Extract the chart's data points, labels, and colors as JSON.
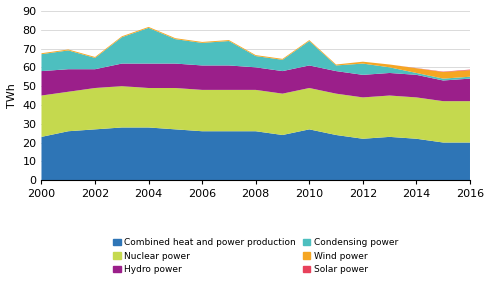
{
  "years": [
    2000,
    2001,
    2002,
    2003,
    2004,
    2005,
    2006,
    2007,
    2008,
    2009,
    2010,
    2011,
    2012,
    2013,
    2014,
    2015,
    2016
  ],
  "combined_heat": [
    23,
    26,
    27,
    28,
    28,
    27,
    26,
    26,
    26,
    24,
    27,
    24,
    22,
    23,
    22,
    20,
    20
  ],
  "nuclear": [
    22,
    21,
    22,
    22,
    21,
    22,
    22,
    22,
    22,
    22,
    22,
    22,
    22,
    22,
    22,
    22,
    22
  ],
  "hydro": [
    13,
    12,
    10,
    12,
    13,
    13,
    13,
    13,
    12,
    12,
    12,
    12,
    12,
    12,
    12,
    11,
    12
  ],
  "condensing": [
    9,
    10,
    6,
    14,
    19,
    13,
    12,
    13,
    6,
    6,
    13,
    3,
    6,
    3,
    1,
    1,
    1
  ],
  "wind": [
    0.5,
    0.5,
    0.5,
    0.5,
    0.5,
    0.5,
    0.5,
    0.5,
    0.5,
    0.5,
    0.5,
    0.5,
    1.0,
    1.5,
    2.5,
    3.5,
    3.5
  ],
  "solar": [
    0,
    0,
    0,
    0,
    0,
    0,
    0,
    0,
    0,
    0,
    0,
    0,
    0,
    0,
    0.1,
    0.2,
    0.3
  ],
  "colors": {
    "combined_heat": "#2E75B6",
    "nuclear": "#C5D94E",
    "hydro": "#9B1F8A",
    "condensing": "#4DBFBF",
    "wind": "#F5A623",
    "solar": "#E8415B"
  },
  "ylabel": "TWh",
  "ylim": [
    0,
    90
  ],
  "yticks": [
    0,
    10,
    20,
    30,
    40,
    50,
    60,
    70,
    80,
    90
  ],
  "xticks": [
    2000,
    2002,
    2004,
    2006,
    2008,
    2010,
    2012,
    2014,
    2016
  ],
  "legend": [
    {
      "label": "Combined heat and power production",
      "color": "#2E75B6"
    },
    {
      "label": "Nuclear power",
      "color": "#C5D94E"
    },
    {
      "label": "Hydro power",
      "color": "#9B1F8A"
    },
    {
      "label": "Condensing power",
      "color": "#4DBFBF"
    },
    {
      "label": "Wind power",
      "color": "#F5A623"
    },
    {
      "label": "Solar power",
      "color": "#E8415B"
    }
  ]
}
